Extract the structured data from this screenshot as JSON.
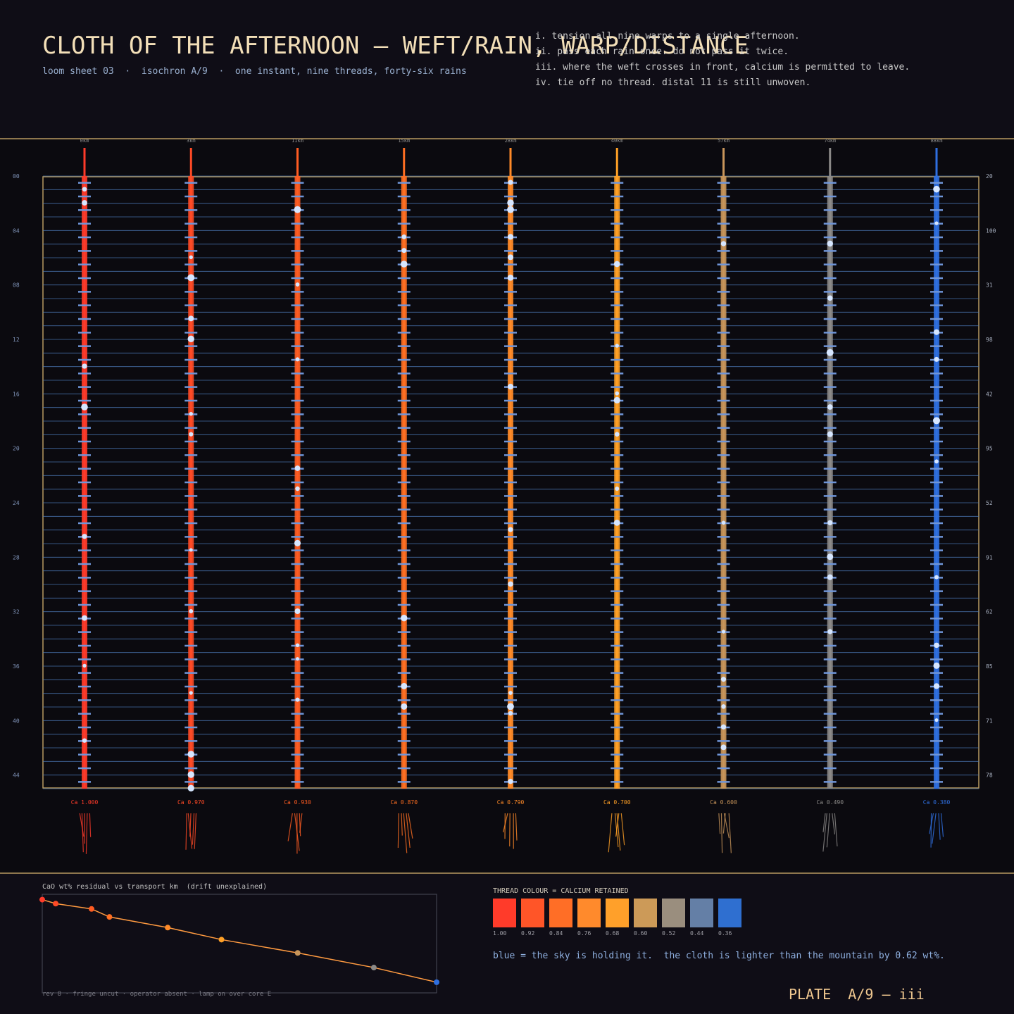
{
  "header": {
    "title": "CLOTH OF THE AFTERNOON — WEFT/RAIN, WARP/DISTANCE",
    "subtitle": "loom sheet 03  ·  isochron A/9  ·  one instant, nine threads, forty-six rains",
    "rules": [
      "i. tension all nine warps to a single afternoon.",
      "ii. pass each rain once. do not pass it twice.",
      "iii. where the weft crosses in front, calcium is permitted to leave.",
      "iv. tie off no thread. distal 11 is still unwoven."
    ]
  },
  "loom": {
    "threads": [
      {
        "label": "0km",
        "ca": "Ca 1.000",
        "color": "#ff3b2a"
      },
      {
        "label": "3km",
        "ca": "Ca 0.970",
        "color": "#ff4a26"
      },
      {
        "label": "11km",
        "ca": "Ca 0.930",
        "color": "#ff5c22"
      },
      {
        "label": "15km",
        "ca": "Ca 0.870",
        "color": "#ff6f22"
      },
      {
        "label": "28km",
        "ca": "Ca 0.790",
        "color": "#ff8a28"
      },
      {
        "label": "40km",
        "ca": "Ca 0.700",
        "color": "#ffa026"
      },
      {
        "label": "57km",
        "ca": "Ca 0.600",
        "color": "#c8955a"
      },
      {
        "label": "74km",
        "ca": "Ca 0.490",
        "color": "#8c8a88"
      },
      {
        "label": "88km",
        "ca": "Ca 0.380",
        "color": "#2f6fe0"
      }
    ],
    "row_labels": [
      "00",
      "04",
      "08",
      "12",
      "16",
      "20",
      "24",
      "28",
      "32",
      "36",
      "40",
      "44"
    ],
    "right_labels": [
      20,
      100,
      31,
      98,
      42,
      95,
      52,
      91,
      62,
      85,
      71,
      78
    ]
  },
  "chart_data": {
    "type": "line",
    "title": "CaO wt% residual vs transport km  (drift unexplained)",
    "footer": "rev 8 · fringe uncut · operator absent · lamp on over core E",
    "x": [
      0,
      3,
      11,
      15,
      28,
      40,
      57,
      74,
      88
    ],
    "values": [
      1.0,
      0.97,
      0.93,
      0.87,
      0.79,
      0.7,
      0.6,
      0.49,
      0.38
    ],
    "colors": [
      "#ff3b2a",
      "#ff4a26",
      "#ff5c22",
      "#ff6f22",
      "#ff8a28",
      "#ffa026",
      "#c8955a",
      "#8c8a88",
      "#2f6fe0"
    ],
    "line_color": "#ff9a40",
    "xlim": [
      0,
      88
    ],
    "ylim": [
      0.3,
      1.04
    ]
  },
  "legend": {
    "title": "THREAD COLOUR = CALCIUM RETAINED",
    "items": [
      {
        "label": "1.00",
        "color": "#ff3b2a"
      },
      {
        "label": "0.92",
        "color": "#ff5528"
      },
      {
        "label": "0.84",
        "color": "#ff6e26"
      },
      {
        "label": "0.76",
        "color": "#ff8a2c"
      },
      {
        "label": "0.68",
        "color": "#ffa02a"
      },
      {
        "label": "0.60",
        "color": "#cc9a58"
      },
      {
        "label": "0.52",
        "color": "#9a8e7e"
      },
      {
        "label": "0.44",
        "color": "#647fa6"
      },
      {
        "label": "0.36",
        "color": "#2f6fd0"
      }
    ],
    "note": "blue = the sky is holding it.  the cloth is lighter than the mountain by 0.62 wt%."
  },
  "plate": "PLATE  A/9 — iii"
}
